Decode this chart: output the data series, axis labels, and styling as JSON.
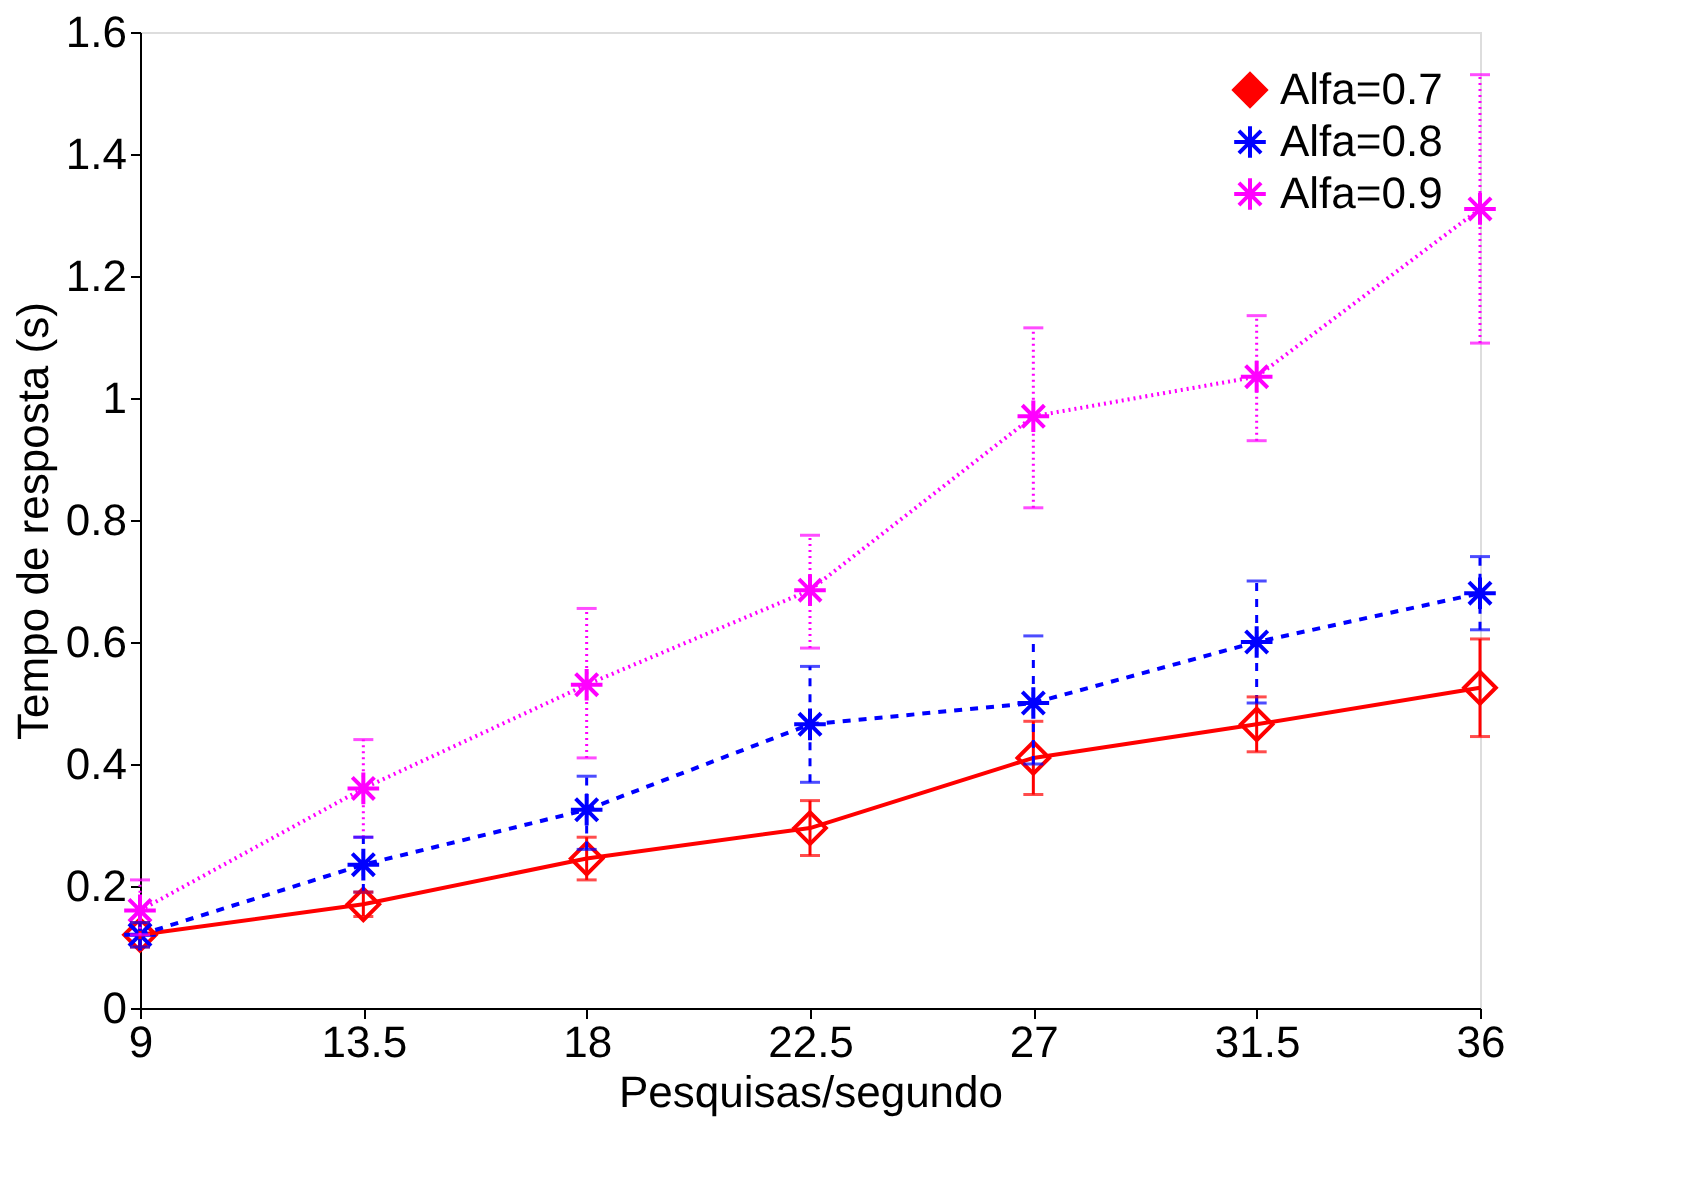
{
  "chart_data": {
    "type": "line",
    "xlabel": "Pesquisas/segundo",
    "ylabel": "Tempo de resposta (s)",
    "x": [
      9,
      13.5,
      18,
      22.5,
      27,
      31.5,
      36
    ],
    "xlim": [
      9,
      36
    ],
    "xticks": [
      9,
      13.5,
      18,
      22.5,
      27,
      31.5,
      36
    ],
    "ylim": [
      0,
      1.6
    ],
    "yticks": [
      0,
      0.2,
      0.4,
      0.6,
      0.8,
      1,
      1.2,
      1.4,
      1.6
    ],
    "grid": false,
    "legend": "top right",
    "series": [
      {
        "name": "Alfa=0.7",
        "color": "#ff0000",
        "marker": "diamond",
        "line_style": "solid",
        "values": [
          0.12,
          0.17,
          0.245,
          0.295,
          0.41,
          0.465,
          0.525
        ],
        "errors": [
          [
            0.1,
            0.14
          ],
          [
            0.15,
            0.19
          ],
          [
            0.21,
            0.28
          ],
          [
            0.25,
            0.34
          ],
          [
            0.35,
            0.47
          ],
          [
            0.42,
            0.51
          ],
          [
            0.445,
            0.605
          ]
        ]
      },
      {
        "name": "Alfa=0.8",
        "color": "#0000ff",
        "marker": "cross",
        "line_style": "dashed",
        "values": [
          0.12,
          0.235,
          0.325,
          0.465,
          0.5,
          0.6,
          0.68
        ],
        "errors": [
          [
            0.1,
            0.14
          ],
          [
            0.19,
            0.28
          ],
          [
            0.26,
            0.38
          ],
          [
            0.37,
            0.56
          ],
          [
            0.4,
            0.61
          ],
          [
            0.5,
            0.7
          ],
          [
            0.62,
            0.74
          ]
        ]
      },
      {
        "name": "Alfa=0.9",
        "color": "#ff00ff",
        "marker": "cross",
        "line_style": "dotted",
        "values": [
          0.16,
          0.36,
          0.53,
          0.685,
          0.97,
          1.035,
          1.31
        ],
        "errors": [
          [
            0.12,
            0.21
          ],
          [
            0.28,
            0.44
          ],
          [
            0.41,
            0.655
          ],
          [
            0.59,
            0.775
          ],
          [
            0.82,
            1.115
          ],
          [
            0.93,
            1.135
          ],
          [
            1.09,
            1.53
          ]
        ]
      }
    ]
  }
}
